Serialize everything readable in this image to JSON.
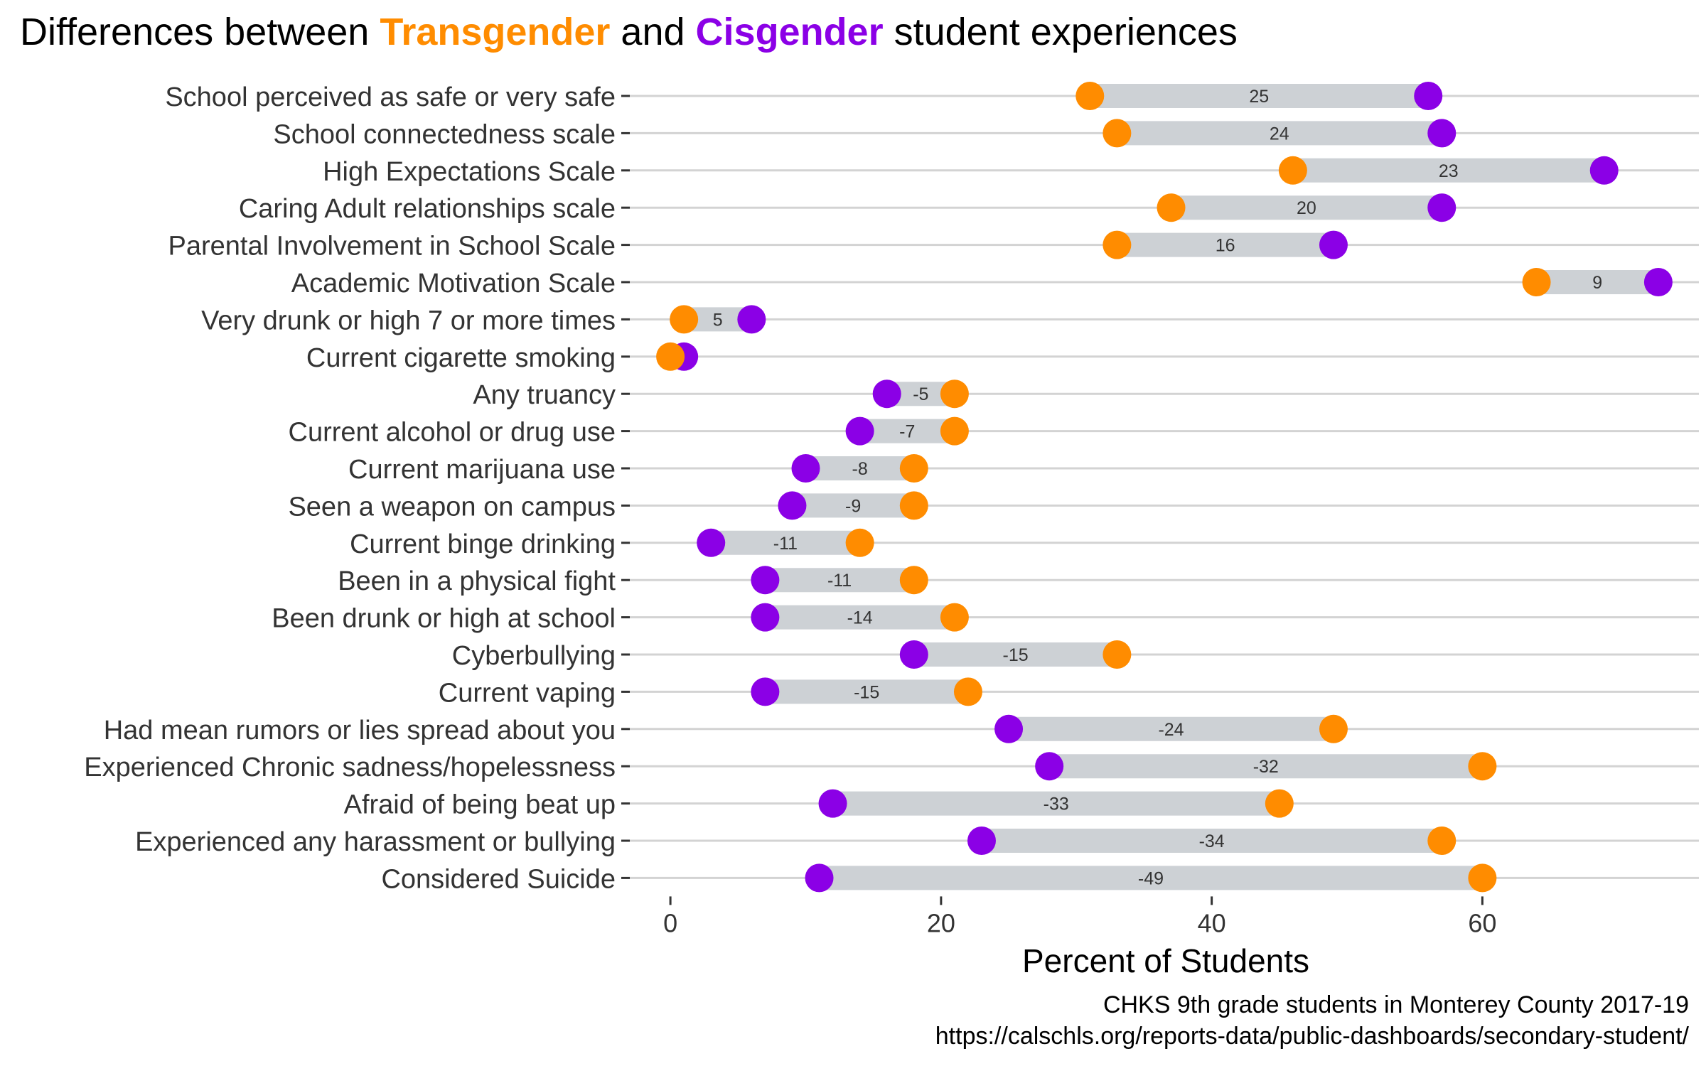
{
  "chart_data": {
    "type": "dumbbell",
    "title_parts": [
      "Differences between ",
      "Transgender",
      " and ",
      "Cisgender",
      " student experiences"
    ],
    "xlabel": "Percent of Students",
    "xlim": [
      -3,
      76
    ],
    "xticks": [
      "0",
      "20",
      "40",
      "60"
    ],
    "xtick_values": [
      0,
      20,
      40,
      60
    ],
    "colors": {
      "transgender": "#FF8C00",
      "cisgender": "#8B00E6",
      "segment": "#CDD1D5",
      "grid": "#D3D3D3"
    },
    "rows": [
      {
        "label": "School perceived as safe or very safe",
        "trans": 31,
        "cis": 56,
        "diff": "25"
      },
      {
        "label": "School connectedness scale",
        "trans": 33,
        "cis": 57,
        "diff": "24"
      },
      {
        "label": "High Expectations Scale",
        "trans": 46,
        "cis": 69,
        "diff": "23"
      },
      {
        "label": "Caring Adult relationships scale",
        "trans": 37,
        "cis": 57,
        "diff": "20"
      },
      {
        "label": "Parental Involvement in School Scale",
        "trans": 33,
        "cis": 49,
        "diff": "16"
      },
      {
        "label": "Academic Motivation Scale",
        "trans": 64,
        "cis": 73,
        "diff": "9"
      },
      {
        "label": "Very drunk or high 7 or more times",
        "trans": 1,
        "cis": 6,
        "diff": "5"
      },
      {
        "label": "Current cigarette smoking",
        "trans": 0,
        "cis": 1,
        "diff": "1"
      },
      {
        "label": "Any truancy",
        "trans": 21,
        "cis": 16,
        "diff": "-5"
      },
      {
        "label": "Current alcohol or drug use",
        "trans": 21,
        "cis": 14,
        "diff": "-7"
      },
      {
        "label": "Current marijuana use",
        "trans": 18,
        "cis": 10,
        "diff": "-8"
      },
      {
        "label": "Seen a weapon on campus",
        "trans": 18,
        "cis": 9,
        "diff": "-9"
      },
      {
        "label": "Current binge drinking",
        "trans": 14,
        "cis": 3,
        "diff": "-11"
      },
      {
        "label": "Been in a physical fight",
        "trans": 18,
        "cis": 7,
        "diff": "-11"
      },
      {
        "label": "Been drunk or high at school",
        "trans": 21,
        "cis": 7,
        "diff": "-14"
      },
      {
        "label": "Cyberbullying",
        "trans": 33,
        "cis": 18,
        "diff": "-15"
      },
      {
        "label": "Current vaping",
        "trans": 22,
        "cis": 7,
        "diff": "-15"
      },
      {
        "label": "Had mean rumors or lies spread about you",
        "trans": 49,
        "cis": 25,
        "diff": "-24"
      },
      {
        "label": "Experienced Chronic sadness/hopelessness",
        "trans": 60,
        "cis": 28,
        "diff": "-32"
      },
      {
        "label": "Afraid of being beat up",
        "trans": 45,
        "cis": 12,
        "diff": "-33"
      },
      {
        "label": "Experienced any harassment or bullying",
        "trans": 57,
        "cis": 23,
        "diff": "-34"
      },
      {
        "label": "Considered Suicide",
        "trans": 60,
        "cis": 11,
        "diff": "-49"
      }
    ],
    "caption_lines": [
      "CHKS 9th grade students in Monterey County 2017-19",
      "https://calschls.org/reports-data/public-dashboards/secondary-student/"
    ]
  }
}
